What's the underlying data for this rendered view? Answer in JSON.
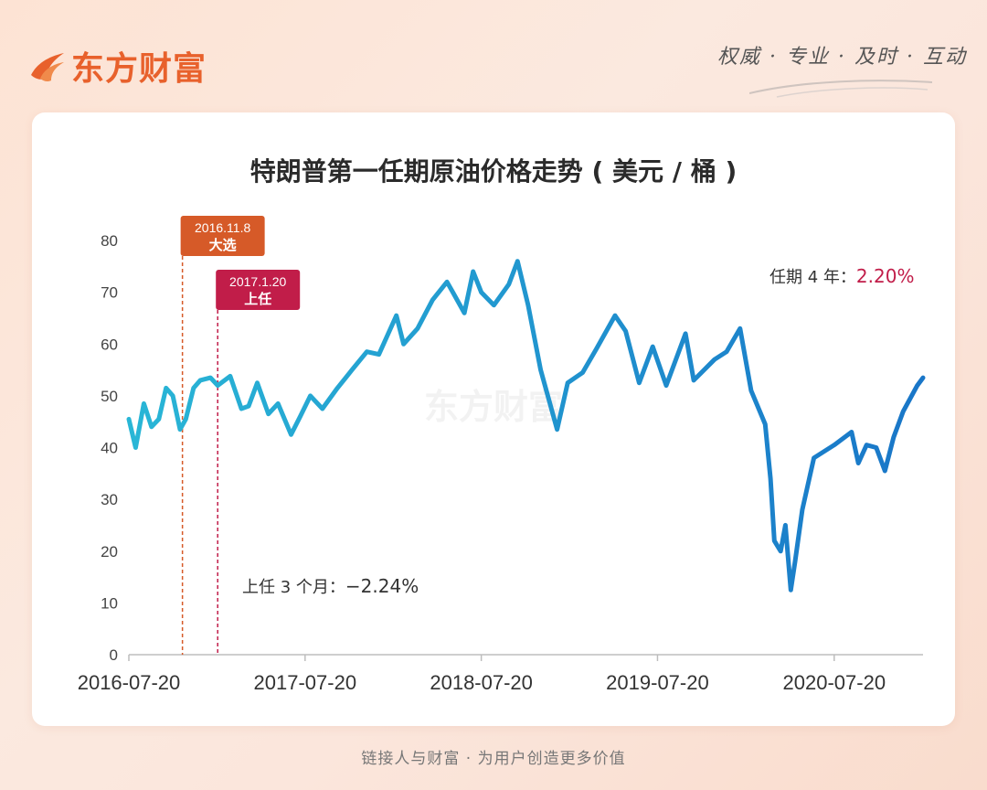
{
  "brand": {
    "name": "东方财富",
    "slogan": "权威 · 专业 · 及时 · 互动",
    "footer": "链接人与财富 · 为用户创造更多价值",
    "watermark": "东方财富",
    "accent_color": "#e8612c"
  },
  "chart_data": {
    "type": "line",
    "title": "特朗普第一任期原油价格走势 ( 美元 / 桶 )",
    "xlabel": "",
    "ylabel": "",
    "ylim": [
      0,
      80
    ],
    "yticks": [
      0,
      10,
      20,
      30,
      40,
      50,
      60,
      70,
      80
    ],
    "x_ticks": [
      "2016-07-20",
      "2017-07-20",
      "2018-07-20",
      "2019-07-20",
      "2020-07-20"
    ],
    "xlim": [
      "2016-07-20",
      "2021-01-20"
    ],
    "grid": false,
    "line_color_start": "#29b6d6",
    "line_color_end": "#1976c8",
    "series": [
      {
        "x": [
          "2016-07-20",
          "2016-08-03",
          "2016-08-20",
          "2016-09-05",
          "2016-09-20",
          "2016-10-05",
          "2016-10-19",
          "2016-11-03",
          "2016-11-15",
          "2016-12-01",
          "2016-12-15",
          "2017-01-05",
          "2017-01-20",
          "2017-02-15",
          "2017-03-10",
          "2017-03-25",
          "2017-04-12",
          "2017-05-05",
          "2017-05-25",
          "2017-06-21",
          "2017-07-10",
          "2017-07-31",
          "2017-08-25",
          "2017-09-25",
          "2017-10-25",
          "2017-11-25",
          "2017-12-20",
          "2018-01-25",
          "2018-02-09",
          "2018-03-10",
          "2018-04-10",
          "2018-05-10",
          "2018-05-22",
          "2018-06-15",
          "2018-07-03",
          "2018-07-20",
          "2018-08-15",
          "2018-09-15",
          "2018-10-03",
          "2018-10-25",
          "2018-11-20",
          "2018-12-24",
          "2019-01-15",
          "2019-02-15",
          "2019-03-15",
          "2019-04-23",
          "2019-05-15",
          "2019-06-12",
          "2019-07-10",
          "2019-08-07",
          "2019-09-16",
          "2019-10-03",
          "2019-11-15",
          "2019-12-10",
          "2020-01-07",
          "2020-01-30",
          "2020-02-28",
          "2020-03-10",
          "2020-03-18",
          "2020-03-31",
          "2020-04-10",
          "2020-04-21",
          "2020-04-30",
          "2020-05-15",
          "2020-06-08",
          "2020-07-20",
          "2020-08-25",
          "2020-09-08",
          "2020-09-25",
          "2020-10-15",
          "2020-11-02",
          "2020-11-20",
          "2020-12-10",
          "2021-01-08",
          "2021-01-20"
        ],
        "y": [
          45.5,
          40.0,
          48.5,
          44.0,
          45.5,
          51.5,
          50.0,
          43.5,
          45.5,
          51.5,
          53.0,
          53.5,
          52.0,
          53.8,
          47.5,
          48.0,
          52.5,
          46.5,
          48.5,
          42.5,
          46.0,
          50.0,
          47.5,
          51.5,
          55.0,
          58.5,
          58.0,
          65.5,
          60.0,
          63.0,
          68.5,
          72.0,
          70.0,
          66.0,
          74.0,
          70.0,
          67.5,
          71.5,
          76.0,
          67.5,
          55.0,
          43.5,
          52.5,
          54.5,
          59.0,
          65.5,
          62.5,
          52.5,
          59.5,
          52.0,
          62.0,
          53.0,
          57.0,
          58.5,
          63.0,
          51.0,
          44.5,
          34.0,
          22.0,
          20.0,
          25.0,
          12.5,
          18.0,
          28.0,
          38.0,
          40.5,
          43.0,
          37.0,
          40.5,
          40.0,
          35.5,
          42.0,
          47.0,
          52.0,
          53.5
        ]
      }
    ],
    "event_tags": [
      {
        "date": "2016-11-08",
        "date_label": "2016.11.8",
        "label": "大选",
        "color": "#d65a28"
      },
      {
        "date": "2017-01-20",
        "date_label": "2017.1.20",
        "label": "上任",
        "color": "#c11d49"
      }
    ],
    "annotations": [
      {
        "id": "three-months",
        "prefix": "上任 3 个月：",
        "value": "−2.24%",
        "color": "#333333"
      },
      {
        "id": "four-years",
        "prefix": "任期 4 年：",
        "value": "2.20%",
        "color": "#c11d49"
      }
    ]
  }
}
